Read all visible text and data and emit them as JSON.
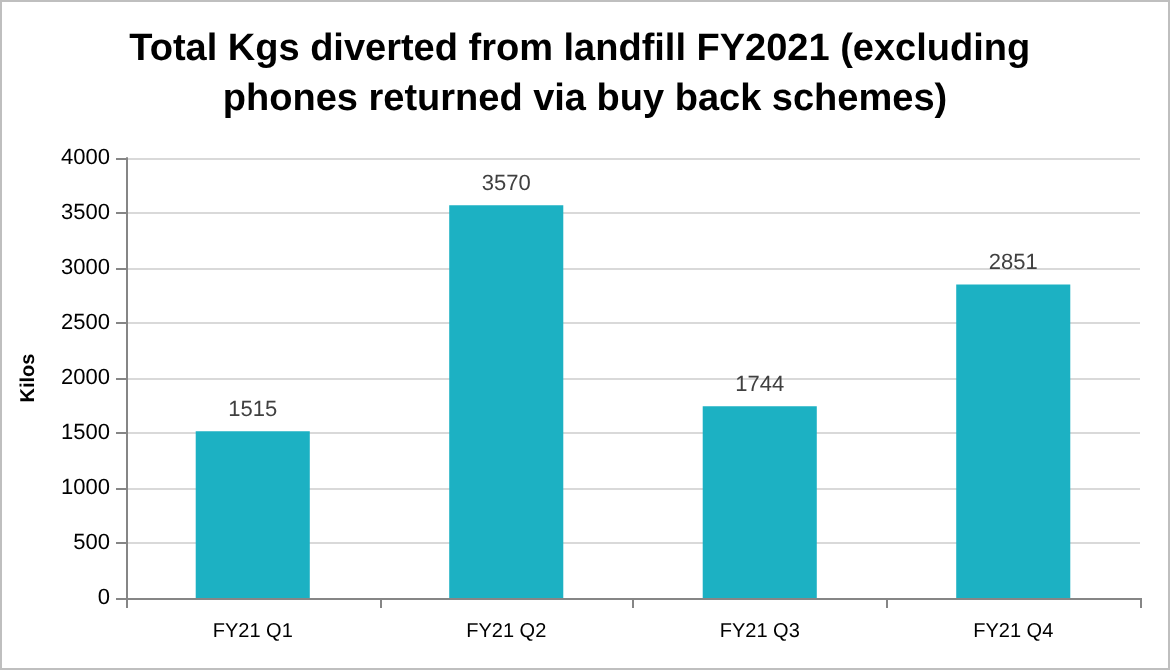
{
  "chart_data": {
    "type": "bar",
    "title": "Total Kgs diverted from landfill FY2021 (excluding phones returned via buy back schemes)",
    "ylabel": "Kilos",
    "categories": [
      "FY21 Q1",
      "FY21 Q2",
      "FY21 Q3",
      "FY21 Q4"
    ],
    "values": [
      1515,
      3570,
      1744,
      2851
    ],
    "color": "#1cb1c3",
    "ylim": [
      0,
      4000
    ],
    "yticks": [
      0,
      500,
      1000,
      1500,
      2000,
      2500,
      3000,
      3500,
      4000
    ],
    "grid": "y",
    "data_labels": true
  }
}
